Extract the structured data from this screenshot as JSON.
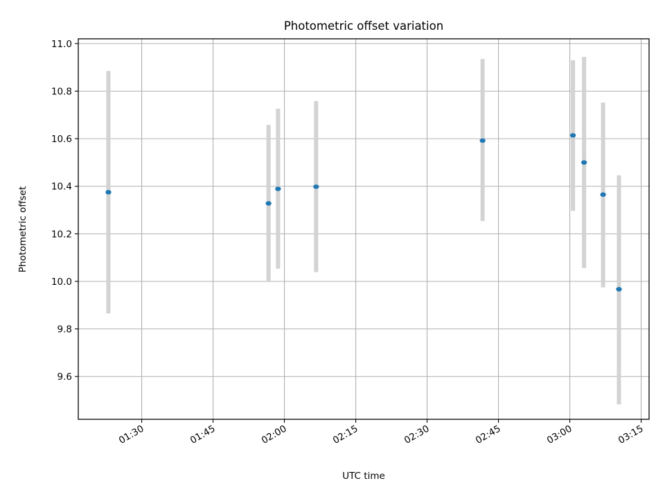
{
  "chart_data": {
    "type": "scatter",
    "title": "Photometric offset variation",
    "xlabel": "UTC time",
    "ylabel": "Photometric offset",
    "x_axis": {
      "type": "time",
      "range": [
        "01:16:40",
        "03:16:40"
      ],
      "ticks": [
        "01:30",
        "01:45",
        "02:00",
        "02:15",
        "02:30",
        "02:45",
        "03:00",
        "03:15"
      ],
      "tick_label_rotation": 30
    },
    "y_axis": {
      "range": [
        9.42,
        11.02
      ],
      "ticks": [
        9.6,
        9.8,
        10.0,
        10.2,
        10.4,
        10.6,
        10.8,
        11.0
      ],
      "tick_labels": [
        "9.6",
        "9.8",
        "10.0",
        "10.2",
        "10.4",
        "10.6",
        "10.8",
        "11.0"
      ]
    },
    "grid": true,
    "colors": {
      "points": "#1f77b4",
      "error_bars": "#d3d3d3"
    },
    "series": [
      {
        "points": [
          {
            "x": "01:23:00",
            "y": 10.375,
            "ylow": 9.865,
            "yhigh": 10.885
          },
          {
            "x": "01:56:40",
            "y": 10.328,
            "ylow": 10.0,
            "yhigh": 10.658
          },
          {
            "x": "01:58:40",
            "y": 10.389,
            "ylow": 10.053,
            "yhigh": 10.726
          },
          {
            "x": "02:06:40",
            "y": 10.398,
            "ylow": 10.039,
            "yhigh": 10.758
          },
          {
            "x": "02:41:40",
            "y": 10.592,
            "ylow": 10.254,
            "yhigh": 10.935
          },
          {
            "x": "03:00:40",
            "y": 10.614,
            "ylow": 10.296,
            "yhigh": 10.93
          },
          {
            "x": "03:03:00",
            "y": 10.5,
            "ylow": 10.056,
            "yhigh": 10.944
          },
          {
            "x": "03:07:00",
            "y": 10.365,
            "ylow": 9.975,
            "yhigh": 10.752
          },
          {
            "x": "03:10:20",
            "y": 9.967,
            "ylow": 9.483,
            "yhigh": 10.446
          }
        ]
      }
    ]
  }
}
